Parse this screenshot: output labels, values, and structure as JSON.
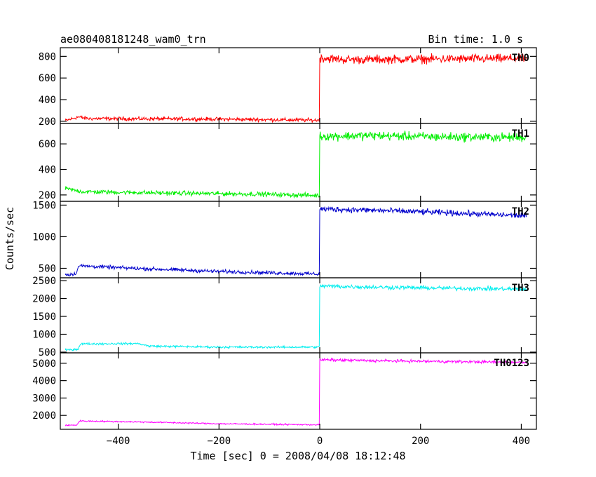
{
  "chart_data": {
    "type": "line",
    "title_left": "ae080408181248_wam0_trn",
    "title_right": "Bin time: 1.0 s",
    "xlabel": "Time [sec] 0 = 2008/04/08 18:12:48",
    "ylabel": "Counts/sec",
    "xlim": [
      -515,
      430
    ],
    "xticks": [
      -400,
      -200,
      0,
      200,
      400
    ],
    "xtick_labels": [
      "−400",
      "−200",
      "0",
      "200",
      "400"
    ],
    "data_start": -505,
    "data_end": 410,
    "onset": 0,
    "panels": [
      {
        "name": "TH0",
        "color": "#ff0000",
        "ylim": [
          180,
          880
        ],
        "yticks": [
          200,
          400,
          600,
          800
        ],
        "pre": [
          [
            -505,
            205
          ],
          [
            -480,
            240
          ],
          [
            -460,
            225
          ],
          [
            -200,
            220
          ],
          [
            -5,
            210
          ]
        ],
        "post": [
          [
            1,
            785
          ],
          [
            50,
            770
          ],
          [
            200,
            775
          ],
          [
            410,
            780
          ]
        ],
        "noise_pre": 15,
        "noise_post": 35
      },
      {
        "name": "TH1",
        "color": "#00ee00",
        "ylim": [
          150,
          760
        ],
        "yticks": [
          200,
          400,
          600
        ],
        "pre": [
          [
            -505,
            250
          ],
          [
            -470,
            225
          ],
          [
            -300,
            215
          ],
          [
            -100,
            205
          ],
          [
            -5,
            195
          ]
        ],
        "post": [
          [
            1,
            660
          ],
          [
            100,
            665
          ],
          [
            250,
            655
          ],
          [
            410,
            650
          ]
        ],
        "noise_pre": 15,
        "noise_post": 30
      },
      {
        "name": "TH2",
        "color": "#0000cc",
        "ylim": [
          350,
          1560
        ],
        "yticks": [
          500,
          1000,
          1500
        ],
        "pre": [
          [
            -505,
            400
          ],
          [
            -485,
            410
          ],
          [
            -478,
            540
          ],
          [
            -400,
            510
          ],
          [
            -200,
            450
          ],
          [
            -5,
            410
          ]
        ],
        "post": [
          [
            1,
            1440
          ],
          [
            100,
            1420
          ],
          [
            250,
            1380
          ],
          [
            410,
            1330
          ]
        ],
        "noise_pre": 25,
        "noise_post": 40
      },
      {
        "name": "TH3",
        "color": "#00eeee",
        "ylim": [
          480,
          2580
        ],
        "yticks": [
          500,
          1000,
          1500,
          2000,
          2500
        ],
        "pre": [
          [
            -505,
            560
          ],
          [
            -480,
            580
          ],
          [
            -475,
            730
          ],
          [
            -360,
            740
          ],
          [
            -340,
            670
          ],
          [
            -200,
            640
          ],
          [
            -5,
            640
          ]
        ],
        "post": [
          [
            1,
            2350
          ],
          [
            100,
            2320
          ],
          [
            250,
            2290
          ],
          [
            410,
            2260
          ]
        ],
        "noise_pre": 25,
        "noise_post": 50
      },
      {
        "name": "TH0123",
        "color": "#ff00ff",
        "ylim": [
          1200,
          5600
        ],
        "yticks": [
          2000,
          3000,
          4000,
          5000
        ],
        "pre": [
          [
            -505,
            1420
          ],
          [
            -482,
            1450
          ],
          [
            -477,
            1680
          ],
          [
            -350,
            1620
          ],
          [
            -200,
            1520
          ],
          [
            -5,
            1460
          ]
        ],
        "post": [
          [
            1,
            5200
          ],
          [
            100,
            5150
          ],
          [
            250,
            5100
          ],
          [
            410,
            5050
          ]
        ],
        "noise_pre": 35,
        "noise_post": 70
      }
    ]
  }
}
